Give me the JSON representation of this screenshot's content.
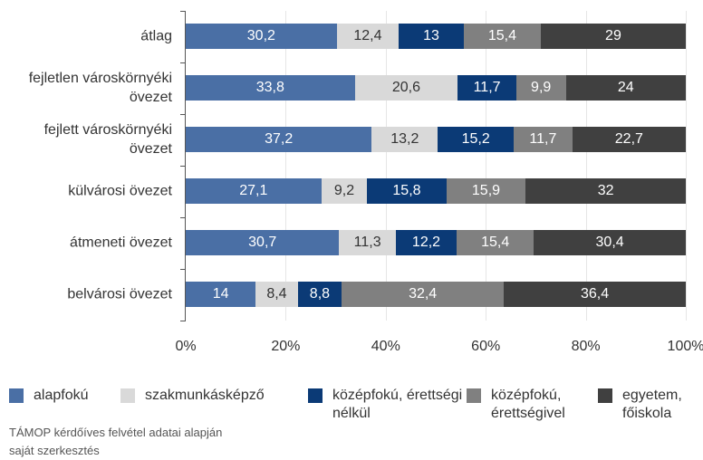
{
  "chart_data": {
    "type": "stacked-barh",
    "categories": [
      "átlag",
      "fejletlen városkörnyéki övezet",
      "fejlett városkörnyéki övezet",
      "külvárosi övezet",
      "átmeneti övezet",
      "belvárosi övezet"
    ],
    "series": [
      {
        "name": "alapfokú",
        "color": "#4a6fa5",
        "text_color": "#ffffff",
        "values": [
          30.2,
          33.8,
          37.2,
          27.1,
          30.7,
          14
        ],
        "value_labels": [
          "30,2",
          "33,8",
          "37,2",
          "27,1",
          "30,7",
          "14"
        ]
      },
      {
        "name": "szakmunkásképző",
        "color": "#d9d9d9",
        "text_color": "#333333",
        "values": [
          12.4,
          20.6,
          13.2,
          9.2,
          11.3,
          8.4
        ],
        "value_labels": [
          "12,4",
          "20,6",
          "13,2",
          "9,2",
          "11,3",
          "8,4"
        ]
      },
      {
        "name": "középfokú, érettségi nélkül",
        "color": "#0b3a76",
        "text_color": "#ffffff",
        "values": [
          13,
          11.7,
          15.2,
          15.8,
          12.2,
          8.8
        ],
        "value_labels": [
          "13",
          "11,7",
          "15,2",
          "15,8",
          "12,2",
          "8,8"
        ]
      },
      {
        "name": "középfokú, érettségivel",
        "color": "#808080",
        "text_color": "#ffffff",
        "values": [
          15.4,
          9.9,
          11.7,
          15.9,
          15.4,
          32.4
        ],
        "value_labels": [
          "15,4",
          "9,9",
          "11,7",
          "15,9",
          "15,4",
          "32,4"
        ]
      },
      {
        "name": "egyetem, főiskola",
        "color": "#404040",
        "text_color": "#ffffff",
        "values": [
          29,
          24,
          22.7,
          32,
          30.4,
          36.4
        ],
        "value_labels": [
          "29",
          "24",
          "22,7",
          "32",
          "30,4",
          "36,4"
        ]
      }
    ],
    "xlim": [
      0,
      100
    ],
    "xticks": [
      {
        "value": 0,
        "label": "0%"
      },
      {
        "value": 20,
        "label": "20%"
      },
      {
        "value": 40,
        "label": "40%"
      },
      {
        "value": 60,
        "label": "60%"
      },
      {
        "value": 80,
        "label": "80%"
      },
      {
        "value": 100,
        "label": "100%"
      }
    ],
    "grid": true,
    "source": "TÁMOP kérdőíves felvétel adatai alapján saját szerkesztés"
  }
}
